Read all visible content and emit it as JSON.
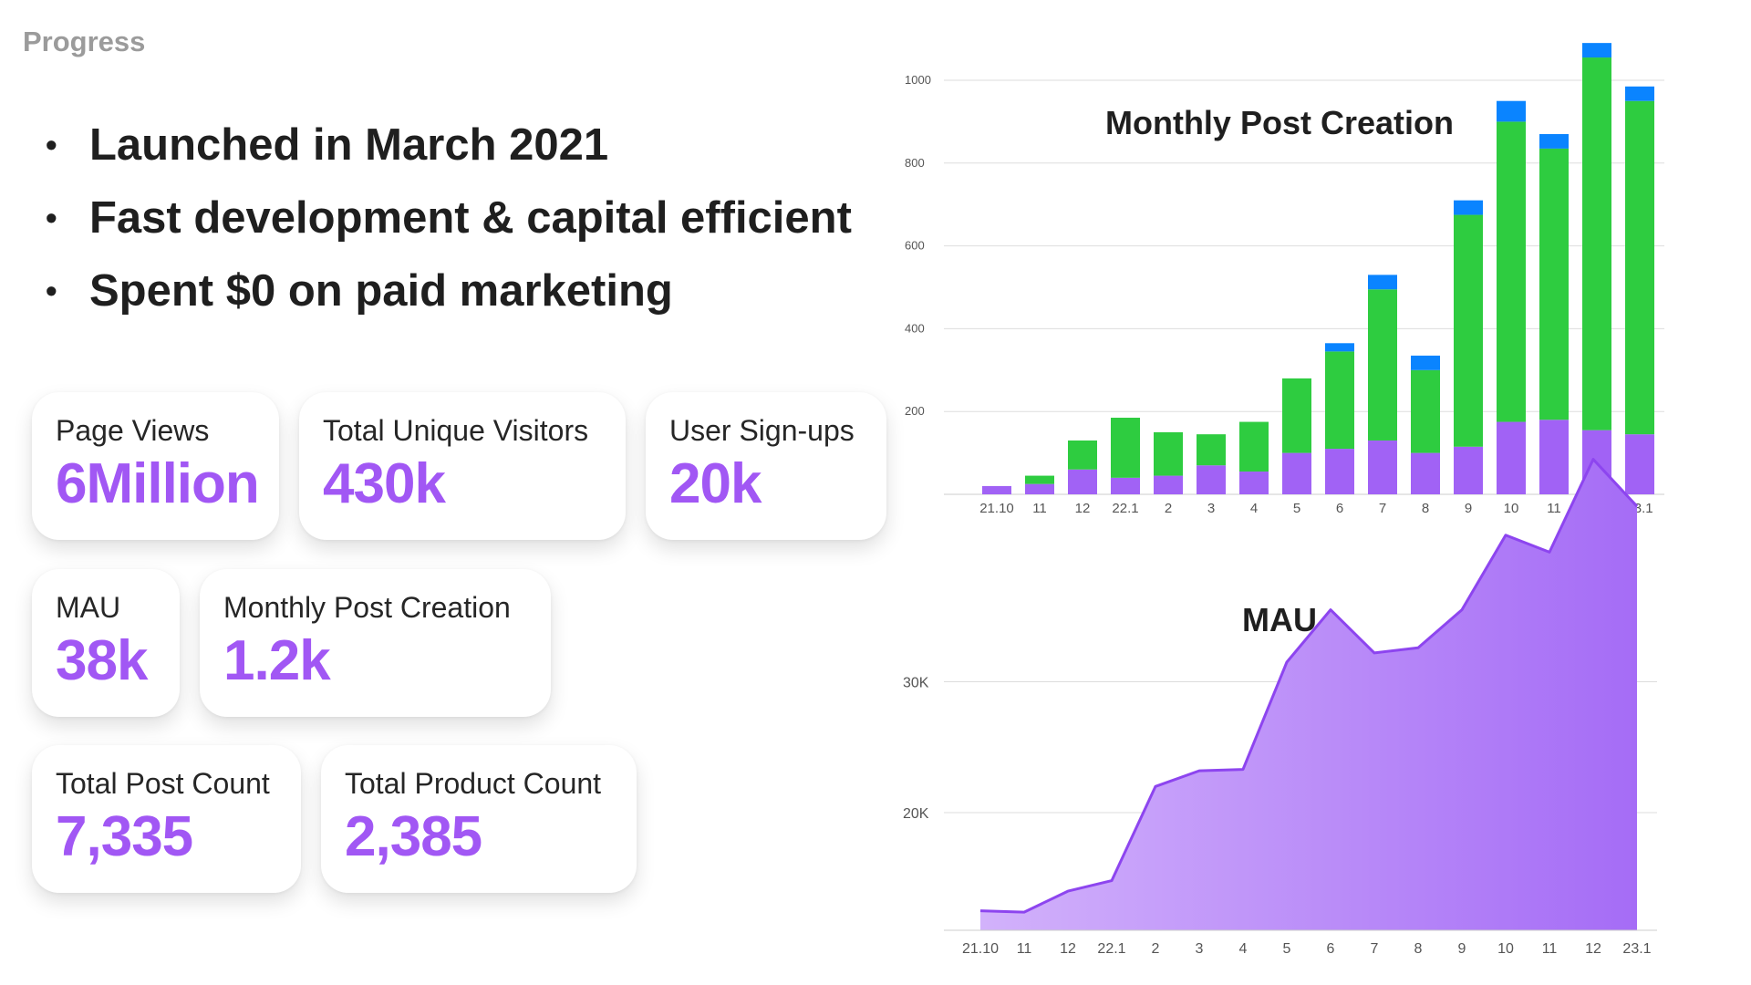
{
  "header": {
    "title": "Progress"
  },
  "bullets": [
    "Launched in March 2021",
    "Fast development & capital efficient",
    "Spent $0 on paid marketing"
  ],
  "cards": {
    "page_views": {
      "label": "Page Views",
      "value": "6Million"
    },
    "unique_visitors": {
      "label": "Total Unique Visitors",
      "value": "430k"
    },
    "signups": {
      "label": "User Sign-ups",
      "value": "20k"
    },
    "mau": {
      "label": "MAU",
      "value": "38k"
    },
    "monthly_posts": {
      "label": "Monthly Post Creation",
      "value": "1.2k"
    },
    "total_posts": {
      "label": "Total Post Count",
      "value": "7,335"
    },
    "total_products": {
      "label": "Total Product Count",
      "value": "2,385"
    }
  },
  "colors": {
    "accent": "#a157f4",
    "purple": "#a162f5",
    "green": "#2ecc40",
    "blue": "#0a84ff"
  },
  "chart_data": [
    {
      "type": "bar",
      "title": "Monthly Post Creation",
      "stacked": true,
      "categories": [
        "21.10",
        "11",
        "12",
        "22.1",
        "2",
        "3",
        "4",
        "5",
        "6",
        "7",
        "8",
        "9",
        "10",
        "11",
        "12",
        "23.1"
      ],
      "series": [
        {
          "values": [
            20,
            25,
            60,
            40,
            45,
            70,
            55,
            100,
            110,
            130,
            100,
            115,
            175,
            180,
            155,
            145
          ]
        },
        {
          "values": [
            0,
            20,
            70,
            145,
            105,
            75,
            120,
            180,
            235,
            365,
            200,
            560,
            725,
            655,
            900,
            805
          ]
        },
        {
          "values": [
            0,
            0,
            0,
            0,
            0,
            0,
            0,
            0,
            20,
            35,
            35,
            35,
            50,
            35,
            35,
            35
          ]
        }
      ],
      "yticks": [
        200,
        400,
        600,
        800,
        1000
      ],
      "ylim": [
        0,
        1000
      ],
      "grid": true,
      "legend": "none"
    },
    {
      "type": "area",
      "title": "MAU",
      "categories": [
        "21.10",
        "11",
        "12",
        "22.1",
        "2",
        "3",
        "4",
        "5",
        "6",
        "7",
        "8",
        "9",
        "10",
        "11",
        "12",
        "23.1"
      ],
      "values": [
        12500,
        12400,
        14000,
        14800,
        22000,
        23200,
        23300,
        31500,
        35500,
        32200,
        32600,
        35500,
        41200,
        39900,
        47000,
        43400
      ],
      "yticks": [
        {
          "value": 20000,
          "label": "20K"
        },
        {
          "value": 30000,
          "label": "30K"
        }
      ],
      "ylim": [
        10000,
        47000
      ],
      "grid": true,
      "legend": "none"
    }
  ]
}
